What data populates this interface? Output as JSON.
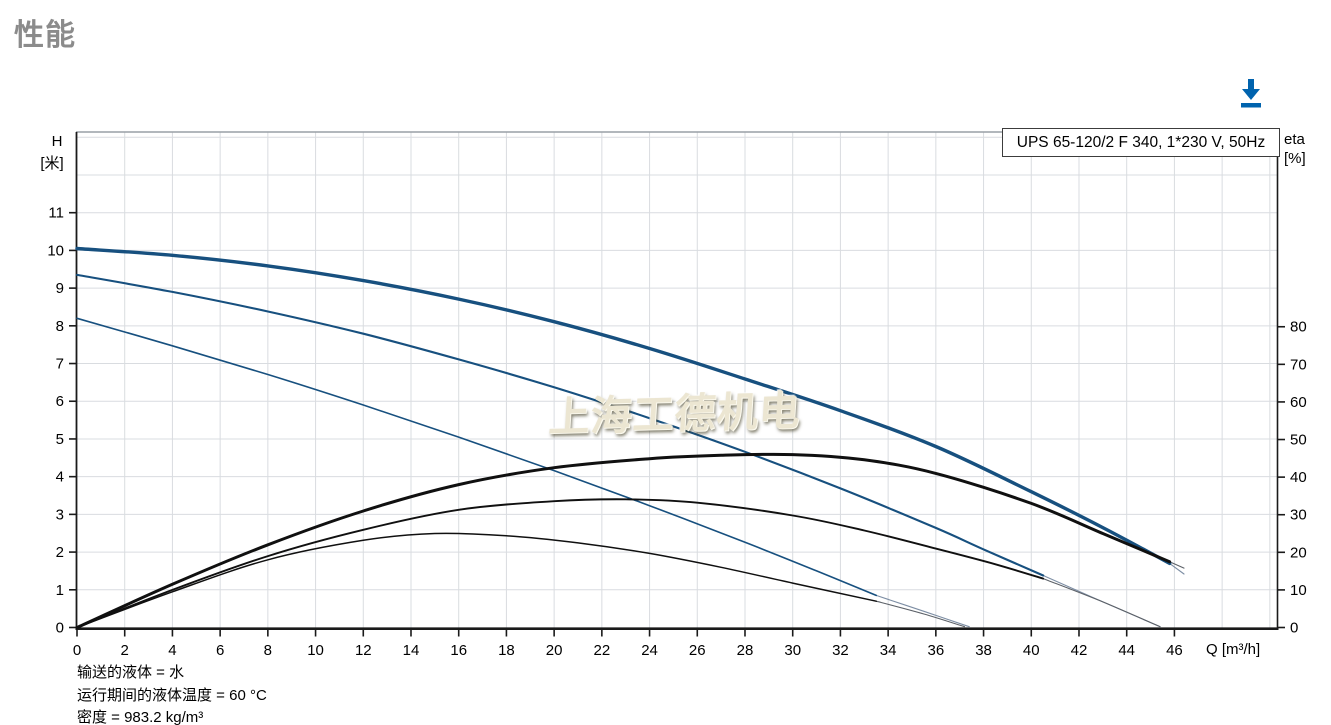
{
  "page": {
    "title": "性能"
  },
  "toolbar": {
    "download_icon": "download-arrow",
    "accent_color": "#0063ae"
  },
  "chart": {
    "model_label": "UPS 65-120/2 F 340, 1*230 V, 50Hz",
    "watermark": "上海工德机电",
    "left_axis_title_line1": "H",
    "left_axis_title_line2": "[米]",
    "right_axis_title_line1": "eta",
    "right_axis_title_line2": "[%]",
    "x_axis_title": "Q [m³/h]",
    "footnotes": [
      "输送的液体 = 水",
      "运行期间的液体温度 = 60 °C",
      "密度 = 983.2 kg/m³"
    ]
  },
  "chart_data": {
    "type": "line",
    "title": "UPS 65-120/2 F 340, 1*230 V, 50Hz",
    "xlabel": "Q [m³/h]",
    "ylabel_left": "H [米]",
    "ylabel_right": "eta [%]",
    "grid": true,
    "x_axis": {
      "min": 0,
      "max": 50.3,
      "ticks": [
        0,
        2,
        4,
        6,
        8,
        10,
        12,
        14,
        16,
        18,
        20,
        22,
        24,
        26,
        28,
        30,
        32,
        34,
        36,
        38,
        40,
        42,
        44,
        46
      ]
    },
    "left_axis": {
      "min": 0,
      "max": 13.14,
      "ticks": [
        0,
        1,
        2,
        3,
        4,
        5,
        6,
        7,
        8,
        9,
        10,
        11
      ]
    },
    "right_axis": {
      "min": 0,
      "max": 131.8,
      "ticks": [
        0,
        10,
        20,
        30,
        40,
        50,
        60,
        70,
        80
      ]
    },
    "grid_steps": {
      "x_step": 2,
      "x_end": 50,
      "left_step": 1,
      "left_end": 13
    },
    "colors": {
      "head_curve": "#17507f",
      "eta_curve": "#101010",
      "tail": "#7d8ea4",
      "grid": "#d9dce0",
      "frame_top": "#999fa5",
      "axis": "#1a1a1a"
    },
    "series": [
      {
        "name": "H speed3 tail",
        "axis": "left",
        "color": "#7d8ea4",
        "width": 1.1,
        "points": [
          [
            45.8,
            1.7
          ],
          [
            46.4,
            1.42
          ]
        ]
      },
      {
        "name": "H speed2 tail",
        "axis": "left",
        "color": "#7d8ea4",
        "width": 1.1,
        "points": [
          [
            40.5,
            1.38
          ],
          [
            42.5,
            0.82
          ],
          [
            45.4,
            0.02
          ]
        ]
      },
      {
        "name": "H speed1 tail",
        "axis": "left",
        "color": "#7d8ea4",
        "width": 1.1,
        "points": [
          [
            33.5,
            0.85
          ],
          [
            35.5,
            0.43
          ],
          [
            37.4,
            0.02
          ]
        ]
      },
      {
        "name": "eta speed3 tail",
        "axis": "right",
        "color": "#5c6168",
        "width": 1.1,
        "points": [
          [
            45.8,
            17.5
          ],
          [
            46.4,
            15.8
          ]
        ]
      },
      {
        "name": "eta speed2 tail",
        "axis": "right",
        "color": "#5c6168",
        "width": 1.1,
        "points": [
          [
            40.5,
            13
          ],
          [
            43,
            6.8
          ],
          [
            45.4,
            0.2
          ]
        ]
      },
      {
        "name": "eta speed1 tail",
        "axis": "right",
        "color": "#5c6168",
        "width": 1.1,
        "points": [
          [
            33.5,
            7
          ],
          [
            35.5,
            3.6
          ],
          [
            37.2,
            0.2
          ]
        ]
      },
      {
        "name": "H curve speed 1",
        "axis": "left",
        "color": "#17507f",
        "width": 1.6,
        "points": [
          [
            0,
            8.2
          ],
          [
            4,
            7.47
          ],
          [
            8,
            6.71
          ],
          [
            12,
            5.9
          ],
          [
            16,
            5.05
          ],
          [
            20,
            4.16
          ],
          [
            24,
            3.23
          ],
          [
            28,
            2.26
          ],
          [
            31,
            1.5
          ],
          [
            33.5,
            0.85
          ]
        ]
      },
      {
        "name": "H curve speed 2",
        "axis": "left",
        "color": "#17507f",
        "width": 2.1,
        "points": [
          [
            0,
            9.35
          ],
          [
            4,
            8.9
          ],
          [
            8,
            8.38
          ],
          [
            12,
            7.79
          ],
          [
            16,
            7.11
          ],
          [
            20,
            6.37
          ],
          [
            24,
            5.55
          ],
          [
            28,
            4.66
          ],
          [
            32,
            3.69
          ],
          [
            36,
            2.64
          ],
          [
            38,
            2.07
          ],
          [
            40.5,
            1.38
          ]
        ]
      },
      {
        "name": "H curve speed 3",
        "axis": "left",
        "color": "#17507f",
        "width": 3.4,
        "points": [
          [
            0,
            10.05
          ],
          [
            4,
            9.87
          ],
          [
            8,
            9.59
          ],
          [
            12,
            9.2
          ],
          [
            16,
            8.71
          ],
          [
            20,
            8.11
          ],
          [
            24,
            7.4
          ],
          [
            28,
            6.59
          ],
          [
            32,
            5.75
          ],
          [
            36,
            4.8
          ],
          [
            40,
            3.6
          ],
          [
            43,
            2.65
          ],
          [
            45.8,
            1.7
          ]
        ]
      },
      {
        "name": "eta curve speed 1",
        "axis": "right",
        "color": "#101010",
        "width": 1.5,
        "points": [
          [
            0,
            0
          ],
          [
            4,
            9.5
          ],
          [
            8,
            18
          ],
          [
            12,
            23.2
          ],
          [
            15,
            25
          ],
          [
            18,
            24.4
          ],
          [
            21,
            22.5
          ],
          [
            24,
            19.7
          ],
          [
            27,
            16
          ],
          [
            30,
            11.8
          ],
          [
            33.5,
            7
          ]
        ]
      },
      {
        "name": "eta curve speed 2",
        "axis": "right",
        "color": "#101010",
        "width": 1.9,
        "points": [
          [
            0,
            0
          ],
          [
            4,
            10
          ],
          [
            8,
            19
          ],
          [
            12,
            26
          ],
          [
            16,
            31.3
          ],
          [
            20,
            33.6
          ],
          [
            23,
            34.1
          ],
          [
            26,
            33.2
          ],
          [
            30,
            29.8
          ],
          [
            33,
            25.8
          ],
          [
            36,
            21
          ],
          [
            38.5,
            16.8
          ],
          [
            40.5,
            13
          ]
        ]
      },
      {
        "name": "eta curve speed 3",
        "axis": "right",
        "color": "#101010",
        "width": 3.0,
        "points": [
          [
            0,
            0
          ],
          [
            4,
            11.5
          ],
          [
            8,
            22
          ],
          [
            12,
            31
          ],
          [
            16,
            38
          ],
          [
            20,
            42.5
          ],
          [
            24,
            44.9
          ],
          [
            27,
            45.8
          ],
          [
            30,
            46
          ],
          [
            33,
            44.6
          ],
          [
            36,
            41
          ],
          [
            40,
            33
          ],
          [
            43,
            25
          ],
          [
            45.8,
            17.5
          ]
        ]
      }
    ]
  }
}
